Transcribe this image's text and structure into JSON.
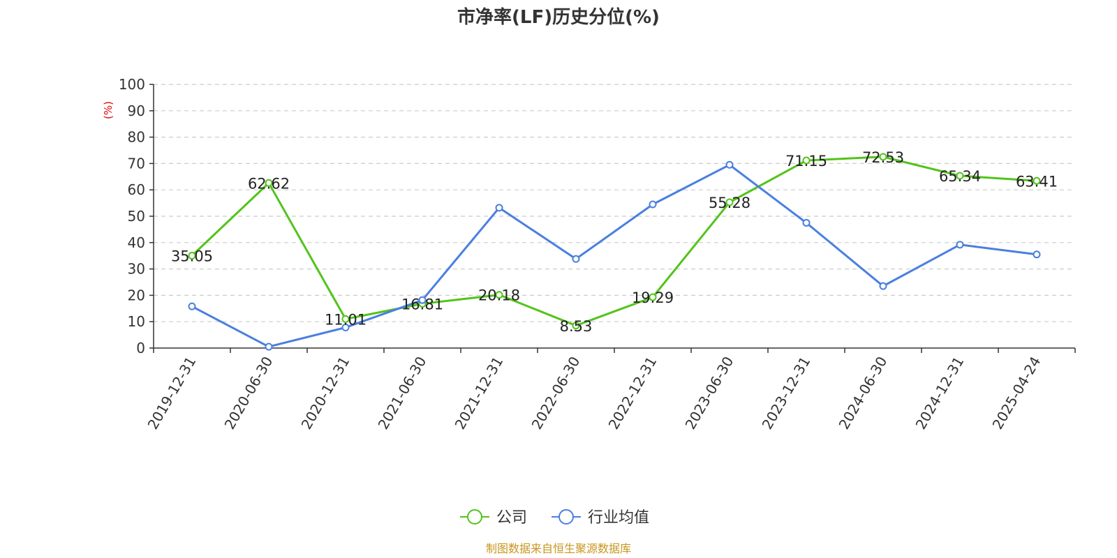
{
  "chart_data": {
    "type": "line",
    "title": "市净率(LF)历史分位(%)",
    "ylabel": "(%)",
    "ylim": [
      0,
      100
    ],
    "yticks": [
      0,
      10,
      20,
      30,
      40,
      50,
      60,
      70,
      80,
      90,
      100
    ],
    "grid": "horizontal-dashed",
    "legend_position": "bottom-center",
    "categories": [
      "2019-12-31",
      "2020-06-30",
      "2020-12-31",
      "2021-06-30",
      "2021-12-31",
      "2022-06-30",
      "2022-12-31",
      "2023-06-30",
      "2023-12-31",
      "2024-06-30",
      "2024-12-31",
      "2025-04-24"
    ],
    "series": [
      {
        "name": "公司",
        "color": "#52c41a",
        "values": [
          35.05,
          62.62,
          11.01,
          16.81,
          20.18,
          8.53,
          19.29,
          55.28,
          71.15,
          72.53,
          65.34,
          63.41
        ],
        "data_labels": [
          "35.05",
          "62.62",
          "11.01",
          "16.81",
          "20.18",
          "8.53",
          "19.29",
          "55.28",
          "71.15",
          "72.53",
          "65.34",
          "63.41"
        ]
      },
      {
        "name": "行业均值",
        "color": "#4a7fe0",
        "values": [
          15.8,
          0.5,
          7.8,
          18.2,
          53.2,
          33.8,
          54.5,
          69.5,
          47.5,
          23.5,
          39.2,
          35.5
        ]
      }
    ],
    "unit_color": "#e00000",
    "source": "制图数据来自恒生聚源数据库",
    "source_color": "#c8961e"
  }
}
